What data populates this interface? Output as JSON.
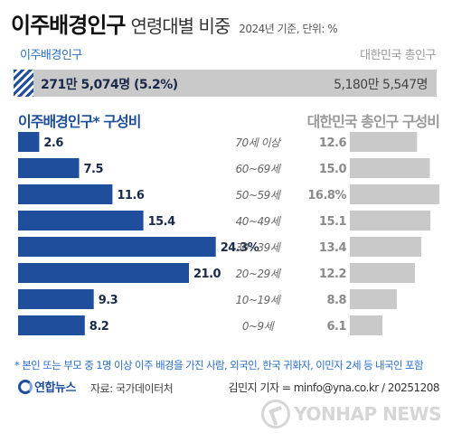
{
  "header": {
    "title_main": "이주배경인구",
    "title_sub": "연령대별 비중",
    "note": "2024년 기준, 단위: %"
  },
  "totals": {
    "left_label": "이주배경인구",
    "left_value": "271만 5,074명 (5.2%)",
    "right_label": "대한민국 총인구",
    "right_value": "5,180만 5,547명"
  },
  "chart_data": {
    "type": "bar",
    "categories": [
      "70세 이상",
      "60~69세",
      "50~59세",
      "40~49세",
      "30~39세",
      "20~29세",
      "10~19세",
      "0~9세"
    ],
    "series": [
      {
        "name": "이주배경인구* 구성비",
        "values": [
          2.6,
          7.5,
          11.6,
          15.4,
          24.3,
          21.0,
          9.3,
          8.2
        ],
        "labels": [
          "2.6",
          "7.5",
          "11.6",
          "15.4",
          "24.3%",
          "21.0",
          "9.3",
          "8.2"
        ],
        "color": "#1f4e9c"
      },
      {
        "name": "대한민국 총인구 구성비",
        "values": [
          12.6,
          15.0,
          16.8,
          15.1,
          13.4,
          12.2,
          8.8,
          6.1
        ],
        "labels": [
          "12.6",
          "15.0",
          "16.8%",
          "15.1",
          "13.4",
          "12.2",
          "8.8",
          "6.1"
        ],
        "color": "#c9c9c9"
      }
    ]
  },
  "footer": {
    "footnote": "* 본인 또는 부모 중 1명 이상 이주 배경을 가진 사람, 외국인, 한국 귀화자, 이민자 2세 등 내국인 포함",
    "logo_text": "연합뉴스",
    "source": "자료: 국가데이터처",
    "credit": "김민지 기자 = minfo@yna.co.kr / 20251208",
    "watermark": "YONHAP NEWS"
  }
}
